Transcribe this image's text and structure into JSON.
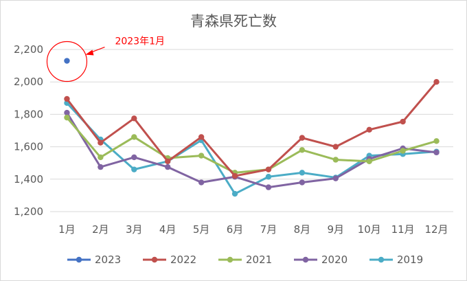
{
  "chart_data": {
    "type": "line",
    "title": "青森県死亡数",
    "categories": [
      "1月",
      "2月",
      "3月",
      "4月",
      "5月",
      "6月",
      "7月",
      "8月",
      "9月",
      "10月",
      "11月",
      "12月"
    ],
    "ylim": [
      1200,
      2200
    ],
    "yticks": [
      "1,200",
      "1,400",
      "1,600",
      "1,800",
      "2,000",
      "2,200"
    ],
    "grid": true,
    "legend_position": "bottom",
    "series": [
      {
        "name": "2023",
        "color": "#4472C4",
        "values": [
          2130,
          null,
          null,
          null,
          null,
          null,
          null,
          null,
          null,
          null,
          null,
          null
        ]
      },
      {
        "name": "2022",
        "color": "#C0504D",
        "values": [
          1895,
          1625,
          1775,
          1510,
          1660,
          1420,
          1460,
          1655,
          1600,
          1705,
          1755,
          2000
        ]
      },
      {
        "name": "2021",
        "color": "#9BBB59",
        "values": [
          1780,
          1535,
          1660,
          1530,
          1545,
          1440,
          1460,
          1580,
          1520,
          1510,
          1575,
          1635
        ]
      },
      {
        "name": "2020",
        "color": "#8064A2",
        "values": [
          1810,
          1475,
          1535,
          1475,
          1380,
          1415,
          1350,
          1380,
          1405,
          1525,
          1590,
          1565
        ]
      },
      {
        "name": "2019",
        "color": "#4BACC6",
        "values": [
          1870,
          1645,
          1460,
          1510,
          1640,
          1310,
          1415,
          1440,
          1410,
          1545,
          1555,
          1570
        ]
      }
    ],
    "annotation": {
      "text": "2023年1月",
      "color": "#FF0000"
    }
  }
}
